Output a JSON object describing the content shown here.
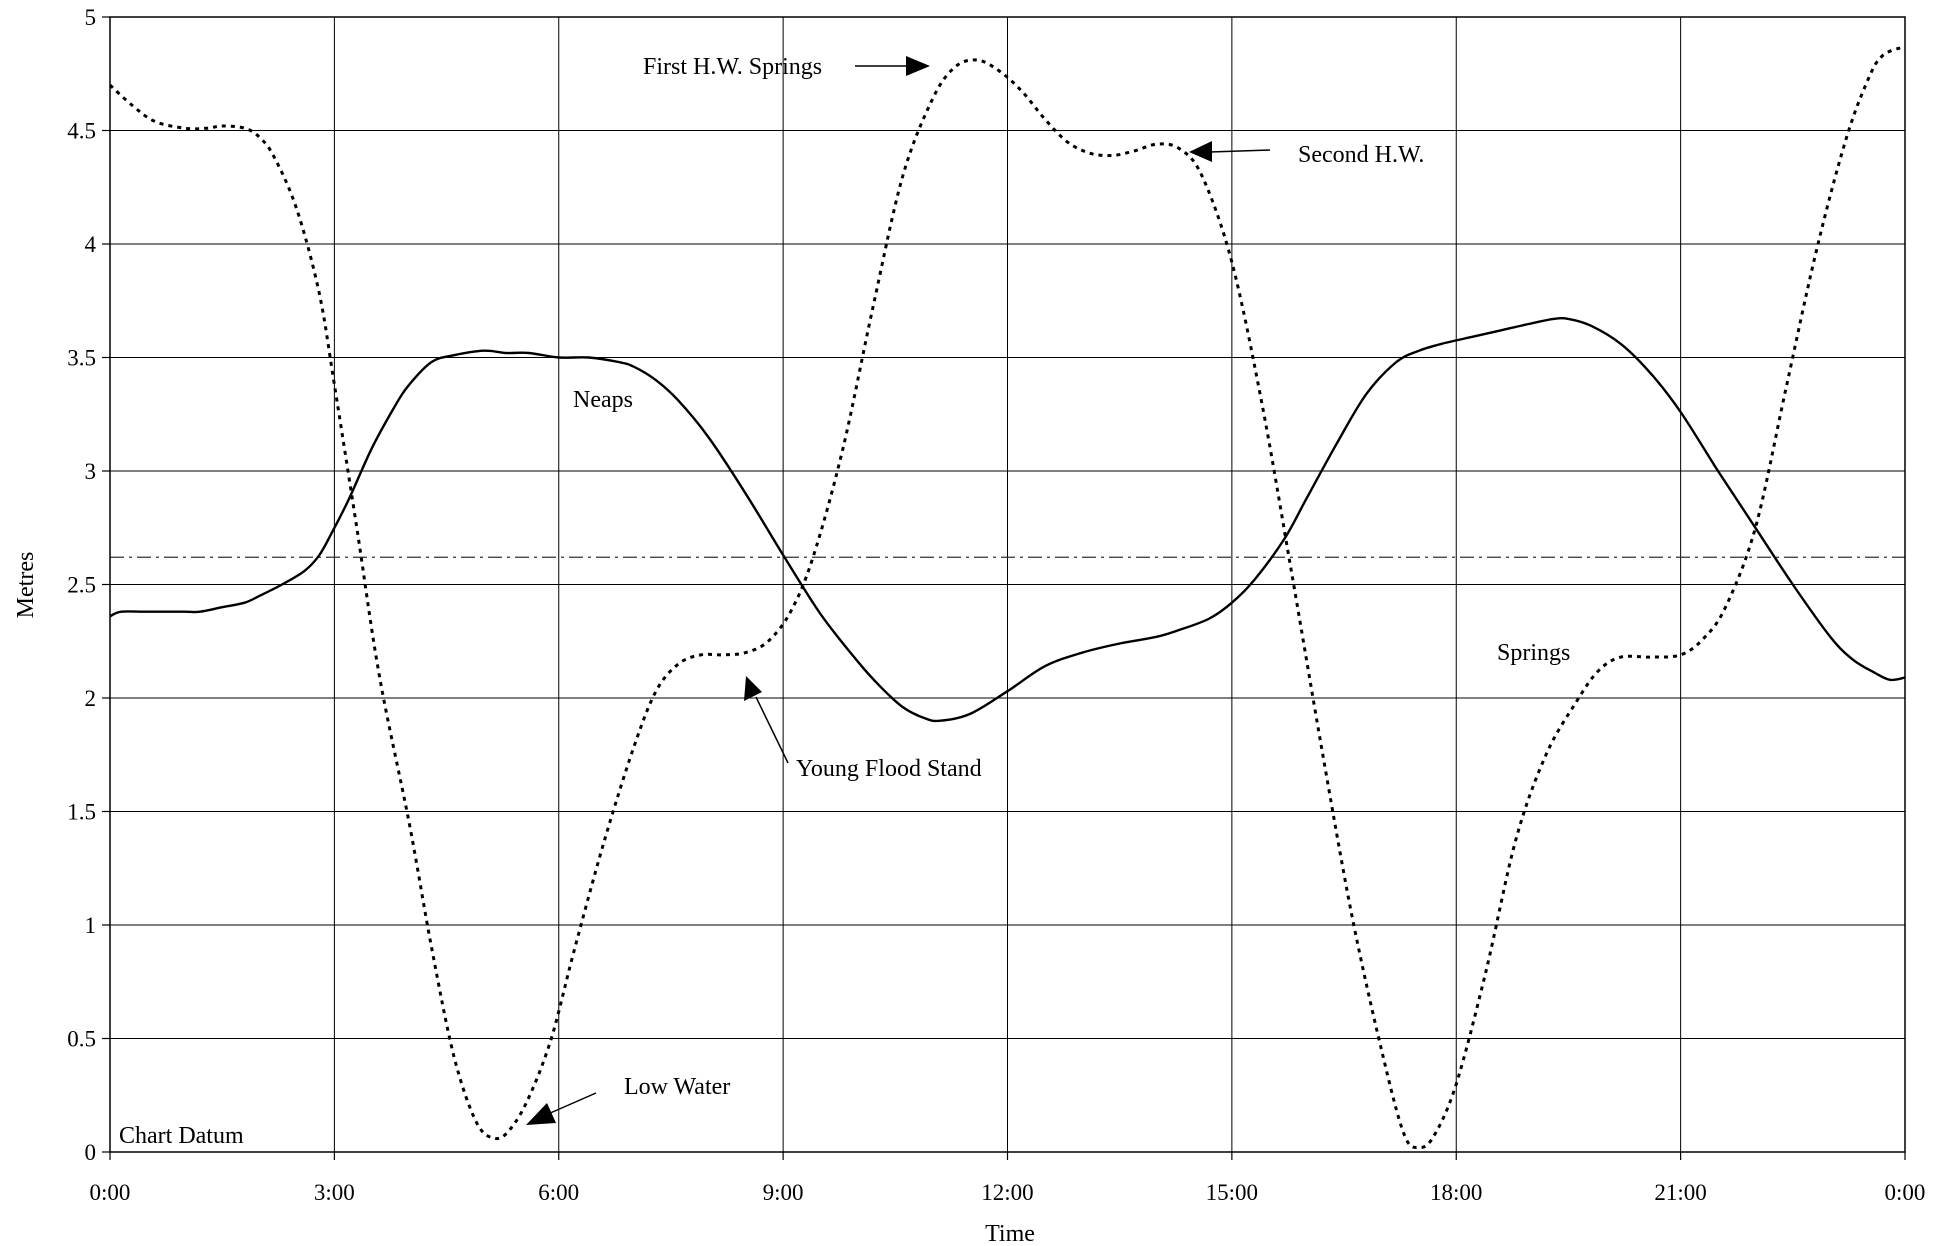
{
  "chart_data": {
    "type": "line",
    "title": "",
    "xlabel": "Time",
    "ylabel": "Metres",
    "xlim": [
      0,
      24
    ],
    "ylim": [
      0,
      5
    ],
    "x_ticks": [
      {
        "value": 0,
        "label": "0:00"
      },
      {
        "value": 3,
        "label": "3:00"
      },
      {
        "value": 6,
        "label": "6:00"
      },
      {
        "value": 9,
        "label": "9:00"
      },
      {
        "value": 12,
        "label": "12:00"
      },
      {
        "value": 15,
        "label": "15:00"
      },
      {
        "value": 18,
        "label": "18:00"
      },
      {
        "value": 21,
        "label": "21:00"
      },
      {
        "value": 24,
        "label": "0:00"
      }
    ],
    "y_ticks": [
      {
        "value": 0,
        "label": "0"
      },
      {
        "value": 0.5,
        "label": "0.5"
      },
      {
        "value": 1,
        "label": "1"
      },
      {
        "value": 1.5,
        "label": "1.5"
      },
      {
        "value": 2,
        "label": "2"
      },
      {
        "value": 2.5,
        "label": "2.5"
      },
      {
        "value": 3,
        "label": "3"
      },
      {
        "value": 3.5,
        "label": "3.5"
      },
      {
        "value": 4,
        "label": "4"
      },
      {
        "value": 4.5,
        "label": "4.5"
      },
      {
        "value": 5,
        "label": "5"
      }
    ],
    "grid": true,
    "reference_line": {
      "y": 2.62,
      "style": "dash-dot"
    },
    "series": [
      {
        "style": "solid",
        "color": "#000000",
        "points": [
          [
            0,
            2.36
          ],
          [
            0.15,
            2.38
          ],
          [
            0.5,
            2.38
          ],
          [
            1.0,
            2.38
          ],
          [
            1.2,
            2.38
          ],
          [
            1.5,
            2.4
          ],
          [
            1.8,
            2.42
          ],
          [
            2.0,
            2.45
          ],
          [
            2.3,
            2.5
          ],
          [
            2.6,
            2.56
          ],
          [
            2.8,
            2.63
          ],
          [
            3.0,
            2.75
          ],
          [
            3.2,
            2.88
          ],
          [
            3.5,
            3.1
          ],
          [
            3.8,
            3.28
          ],
          [
            4.0,
            3.38
          ],
          [
            4.3,
            3.48
          ],
          [
            4.6,
            3.51
          ],
          [
            5.0,
            3.53
          ],
          [
            5.3,
            3.52
          ],
          [
            5.6,
            3.52
          ],
          [
            6.0,
            3.5
          ],
          [
            6.4,
            3.5
          ],
          [
            6.8,
            3.48
          ],
          [
            7.0,
            3.46
          ],
          [
            7.3,
            3.4
          ],
          [
            7.6,
            3.31
          ],
          [
            8.0,
            3.15
          ],
          [
            8.5,
            2.9
          ],
          [
            9.0,
            2.63
          ],
          [
            9.5,
            2.37
          ],
          [
            10.0,
            2.16
          ],
          [
            10.3,
            2.05
          ],
          [
            10.6,
            1.96
          ],
          [
            10.9,
            1.91
          ],
          [
            11.1,
            1.9
          ],
          [
            11.5,
            1.93
          ],
          [
            12.0,
            2.03
          ],
          [
            12.5,
            2.14
          ],
          [
            13.0,
            2.2
          ],
          [
            13.5,
            2.24
          ],
          [
            14.0,
            2.27
          ],
          [
            14.3,
            2.3
          ],
          [
            14.7,
            2.35
          ],
          [
            15.0,
            2.42
          ],
          [
            15.3,
            2.52
          ],
          [
            15.7,
            2.7
          ],
          [
            16.0,
            2.88
          ],
          [
            16.4,
            3.12
          ],
          [
            16.8,
            3.34
          ],
          [
            17.2,
            3.48
          ],
          [
            17.5,
            3.53
          ],
          [
            17.8,
            3.56
          ],
          [
            18.2,
            3.59
          ],
          [
            18.6,
            3.62
          ],
          [
            19.0,
            3.65
          ],
          [
            19.3,
            3.67
          ],
          [
            19.5,
            3.67
          ],
          [
            19.8,
            3.64
          ],
          [
            20.2,
            3.56
          ],
          [
            20.6,
            3.43
          ],
          [
            21.0,
            3.26
          ],
          [
            21.5,
            3.0
          ],
          [
            22.0,
            2.75
          ],
          [
            22.5,
            2.5
          ],
          [
            23.0,
            2.27
          ],
          [
            23.3,
            2.17
          ],
          [
            23.6,
            2.11
          ],
          [
            23.8,
            2.08
          ],
          [
            24.0,
            2.09
          ]
        ]
      },
      {
        "style": "dotted",
        "color": "#000000",
        "points": [
          [
            0,
            4.7
          ],
          [
            0.3,
            4.61
          ],
          [
            0.6,
            4.54
          ],
          [
            1.0,
            4.51
          ],
          [
            1.3,
            4.51
          ],
          [
            1.5,
            4.52
          ],
          [
            1.8,
            4.51
          ],
          [
            2.0,
            4.47
          ],
          [
            2.2,
            4.38
          ],
          [
            2.5,
            4.15
          ],
          [
            2.8,
            3.78
          ],
          [
            3.0,
            3.38
          ],
          [
            3.3,
            2.75
          ],
          [
            3.6,
            2.1
          ],
          [
            4.0,
            1.45
          ],
          [
            4.3,
            0.9
          ],
          [
            4.6,
            0.42
          ],
          [
            4.9,
            0.13
          ],
          [
            5.15,
            0.06
          ],
          [
            5.35,
            0.1
          ],
          [
            5.6,
            0.24
          ],
          [
            5.9,
            0.5
          ],
          [
            6.2,
            0.88
          ],
          [
            6.6,
            1.36
          ],
          [
            7.0,
            1.78
          ],
          [
            7.3,
            2.03
          ],
          [
            7.6,
            2.15
          ],
          [
            7.9,
            2.19
          ],
          [
            8.2,
            2.19
          ],
          [
            8.5,
            2.2
          ],
          [
            8.8,
            2.25
          ],
          [
            9.1,
            2.38
          ],
          [
            9.4,
            2.62
          ],
          [
            9.8,
            3.1
          ],
          [
            10.2,
            3.72
          ],
          [
            10.6,
            4.3
          ],
          [
            11.0,
            4.64
          ],
          [
            11.3,
            4.78
          ],
          [
            11.6,
            4.81
          ],
          [
            11.9,
            4.76
          ],
          [
            12.2,
            4.67
          ],
          [
            12.5,
            4.55
          ],
          [
            12.8,
            4.45
          ],
          [
            13.1,
            4.4
          ],
          [
            13.4,
            4.39
          ],
          [
            13.7,
            4.41
          ],
          [
            14.0,
            4.44
          ],
          [
            14.3,
            4.42
          ],
          [
            14.6,
            4.3
          ],
          [
            15.0,
            3.92
          ],
          [
            15.4,
            3.3
          ],
          [
            15.8,
            2.55
          ],
          [
            16.2,
            1.78
          ],
          [
            16.6,
            1.05
          ],
          [
            17.0,
            0.45
          ],
          [
            17.3,
            0.08
          ],
          [
            17.5,
            0.02
          ],
          [
            17.7,
            0.07
          ],
          [
            18.0,
            0.3
          ],
          [
            18.4,
            0.8
          ],
          [
            18.8,
            1.38
          ],
          [
            19.2,
            1.75
          ],
          [
            19.6,
            1.98
          ],
          [
            19.9,
            2.12
          ],
          [
            20.2,
            2.18
          ],
          [
            20.6,
            2.18
          ],
          [
            21.0,
            2.19
          ],
          [
            21.3,
            2.26
          ],
          [
            21.6,
            2.4
          ],
          [
            22.0,
            2.75
          ],
          [
            22.4,
            3.35
          ],
          [
            22.8,
            3.95
          ],
          [
            23.2,
            4.45
          ],
          [
            23.5,
            4.72
          ],
          [
            23.7,
            4.83
          ],
          [
            24.0,
            4.87
          ]
        ]
      }
    ],
    "annotations": {
      "neaps": "Neaps",
      "springs": "Springs",
      "first_hw": "First H.W. Springs",
      "second_hw": "Second H.W.",
      "young_flood": "Young Flood Stand",
      "low_water": "Low Water",
      "chart_datum": "Chart Datum"
    }
  }
}
